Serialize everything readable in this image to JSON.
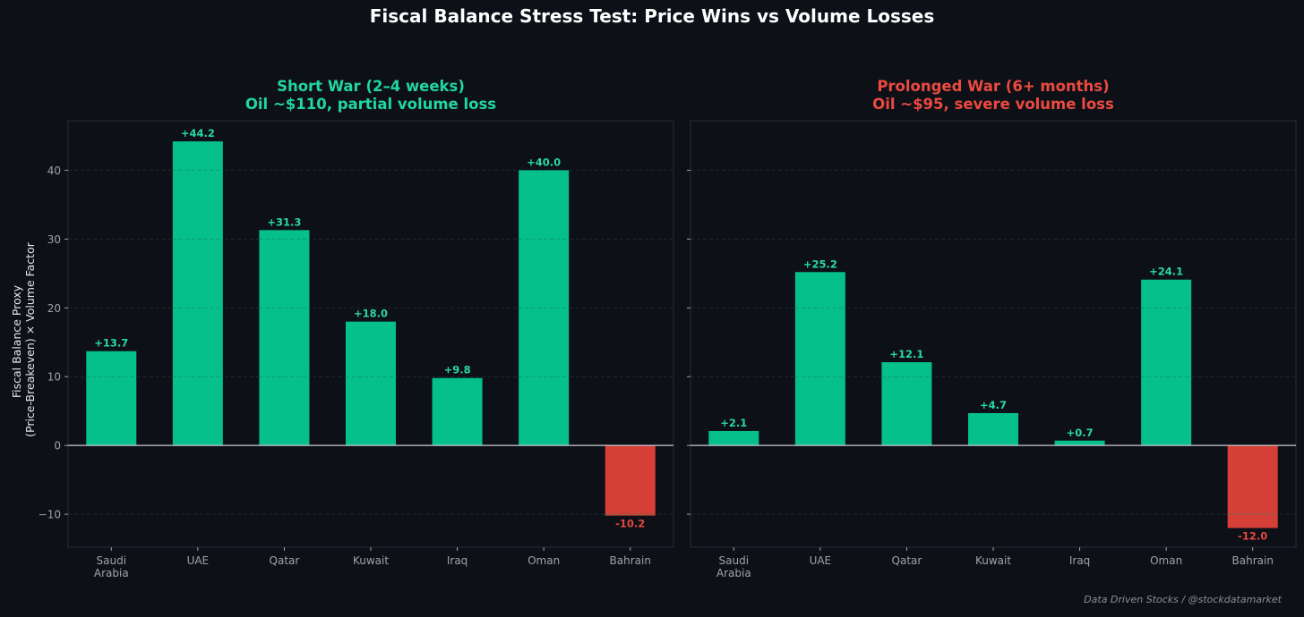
{
  "figure": {
    "title": "Fiscal Balance Stress Test: Price Wins vs Volume Losses",
    "credit": "Data Driven Stocks / @stockdatamarket",
    "ylabel_lines": [
      "Fiscal Balance Proxy",
      "(Price-Breakeven) × Volume Factor"
    ]
  },
  "colors": {
    "background": "#0d1017",
    "positive_bar": "#05bf8c",
    "negative_bar": "#d63f37",
    "positive_label": "#2ad9a2",
    "negative_label": "#e5483f",
    "short_title": "#21d6a0",
    "prolonged_title": "#ec4a40",
    "axis_text": "#9ea3ab",
    "title_text": "#ffffff"
  },
  "chart_data": [
    {
      "type": "bar",
      "title_lines": [
        "Short War (2–4 weeks)",
        "Oil ~$110, partial volume loss"
      ],
      "title_color_key": "short_title",
      "categories": [
        [
          "Saudi",
          "Arabia"
        ],
        [
          "UAE"
        ],
        [
          "Qatar"
        ],
        [
          "Kuwait"
        ],
        [
          "Iraq"
        ],
        [
          "Oman"
        ],
        [
          "Bahrain"
        ]
      ],
      "values": [
        13.7,
        44.2,
        31.3,
        18.0,
        9.8,
        40.0,
        -10.2
      ],
      "value_labels": [
        "+13.7",
        "+44.2",
        "+31.3",
        "+18.0",
        "+9.8",
        "+40.0",
        "-10.2"
      ],
      "ylim": [
        -14.8,
        47.2
      ],
      "yticks": [
        -10,
        0,
        10,
        20,
        30,
        40
      ],
      "ytick_labels": [
        "−10",
        "0",
        "10",
        "20",
        "30",
        "40"
      ],
      "show_ytick_labels": true,
      "grid": true
    },
    {
      "type": "bar",
      "title_lines": [
        "Prolonged War (6+ months)",
        "Oil ~$95, severe volume loss"
      ],
      "title_color_key": "prolonged_title",
      "categories": [
        [
          "Saudi",
          "Arabia"
        ],
        [
          "UAE"
        ],
        [
          "Qatar"
        ],
        [
          "Kuwait"
        ],
        [
          "Iraq"
        ],
        [
          "Oman"
        ],
        [
          "Bahrain"
        ]
      ],
      "values": [
        2.1,
        25.2,
        12.1,
        4.7,
        0.7,
        24.1,
        -12.0
      ],
      "value_labels": [
        "+2.1",
        "+25.2",
        "+12.1",
        "+4.7",
        "+0.7",
        "+24.1",
        "-12.0"
      ],
      "ylim": [
        -14.8,
        47.2
      ],
      "yticks": [
        -10,
        0,
        10,
        20,
        30,
        40
      ],
      "ytick_labels": [
        "−10",
        "0",
        "10",
        "20",
        "30",
        "40"
      ],
      "show_ytick_labels": false,
      "grid": true
    }
  ]
}
